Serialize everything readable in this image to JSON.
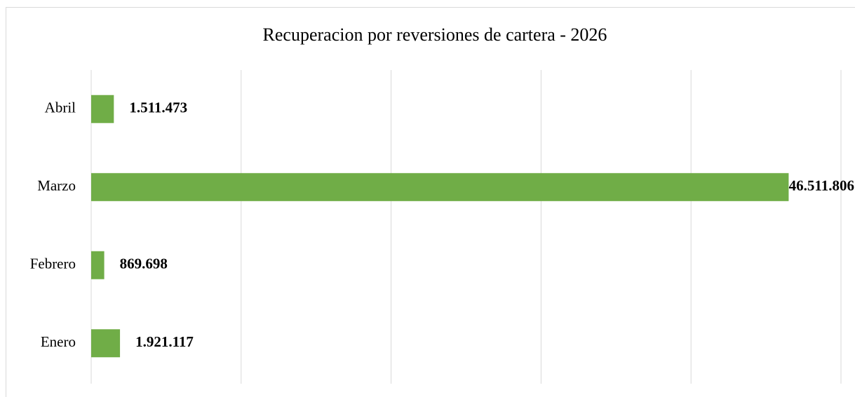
{
  "chart_data": {
    "type": "bar",
    "orientation": "horizontal",
    "title": "Recuperacion por reversiones de cartera - 2026",
    "categories": [
      "Enero",
      "Febrero",
      "Marzo",
      "Abril"
    ],
    "values": [
      1921117,
      869698,
      46511806,
      1511473
    ],
    "value_labels": [
      "1.921.117",
      "869.698",
      "46.511.806",
      "1.511.473"
    ],
    "color": "#70ad47",
    "xlim": [
      0,
      50000000
    ],
    "xticks": [
      0,
      10000000,
      20000000,
      30000000,
      40000000,
      50000000
    ],
    "grid": true
  }
}
